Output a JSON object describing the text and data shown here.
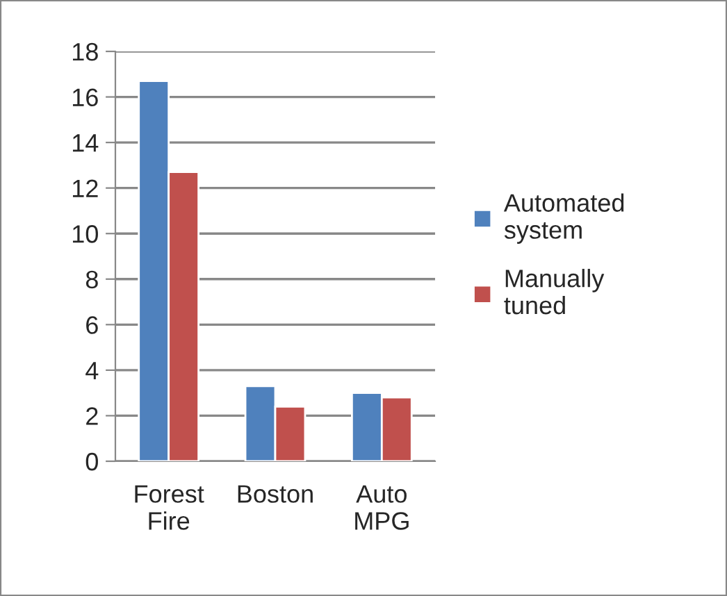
{
  "chart_data": {
    "type": "bar",
    "categories": [
      "Forest Fire",
      "Boston",
      "Auto MPG"
    ],
    "series": [
      {
        "name": "Automated system",
        "color": "#4f81bd",
        "values": [
          16.7,
          3.3,
          3.0
        ]
      },
      {
        "name": "Manually tuned",
        "color": "#c0504d",
        "values": [
          12.7,
          2.4,
          2.8
        ]
      }
    ],
    "ylim": [
      0,
      18
    ],
    "yticks": [
      0,
      2,
      4,
      6,
      8,
      10,
      12,
      14,
      16,
      18
    ],
    "grid": "y",
    "legend": "right"
  }
}
